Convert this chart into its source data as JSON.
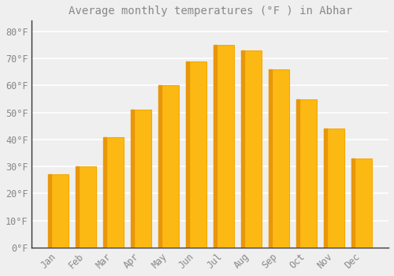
{
  "title": "Average monthly temperatures (°F ) in Abhar",
  "months": [
    "Jan",
    "Feb",
    "Mar",
    "Apr",
    "May",
    "Jun",
    "Jul",
    "Aug",
    "Sep",
    "Oct",
    "Nov",
    "Dec"
  ],
  "values": [
    27,
    30,
    41,
    51,
    60,
    69,
    75,
    73,
    66,
    55,
    44,
    33
  ],
  "bar_color": "#FDB913",
  "bar_edge_color": "#F5A800",
  "background_color": "#EFEFEF",
  "plot_bg_color": "#EFEFEF",
  "grid_color": "#FFFFFF",
  "text_color": "#888888",
  "spine_color": "#333333",
  "ylim": [
    0,
    84
  ],
  "yticks": [
    0,
    10,
    20,
    30,
    40,
    50,
    60,
    70,
    80
  ],
  "title_fontsize": 10,
  "tick_fontsize": 8.5
}
